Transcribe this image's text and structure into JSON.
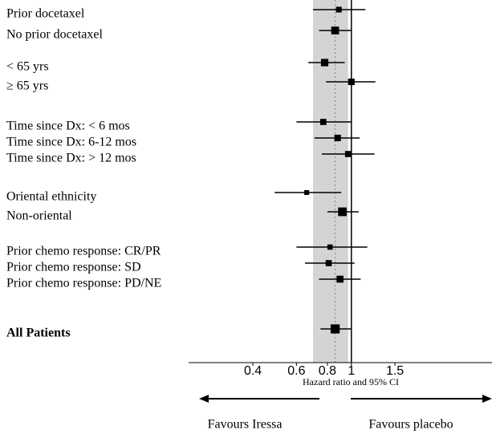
{
  "chart_data": {
    "type": "forest",
    "categories": [
      "Prior docetaxel",
      "No prior docetaxel",
      "< 65 yrs",
      "≥ 65 yrs",
      "Time since Dx: < 6 mos",
      "Time since Dx: 6-12 mos",
      "Time since Dx: > 12 mos",
      "Oriental ethnicity",
      "Non-oriental",
      "Prior chemo response: CR/PR",
      "Prior chemo response: SD",
      "Prior chemo response: PD/NE",
      "All Patients"
    ],
    "values": [
      0.89,
      0.86,
      0.78,
      1.0,
      0.77,
      0.88,
      0.97,
      0.66,
      0.92,
      0.82,
      0.81,
      0.9,
      0.86
    ],
    "lower": [
      0.7,
      0.74,
      0.67,
      0.79,
      0.6,
      0.71,
      0.76,
      0.49,
      0.8,
      0.6,
      0.65,
      0.74,
      0.75
    ],
    "upper": [
      1.14,
      1.0,
      0.94,
      1.25,
      1.0,
      1.08,
      1.24,
      0.91,
      1.07,
      1.16,
      1.03,
      1.09,
      1.0
    ],
    "weights": [
      1.2,
      2.2,
      2.0,
      1.6,
      1.4,
      1.6,
      1.4,
      0.8,
      2.6,
      1.0,
      1.4,
      1.8,
      2.8
    ],
    "band": [
      0.7,
      0.97
    ],
    "xlim": [
      0.22,
      3.7
    ],
    "xticks": [
      0.4,
      0.6,
      0.8,
      1,
      1.5
    ],
    "log_x": true,
    "xlabel": "Hazard ratio and 95% CI",
    "left_annotation": "Favours Iressa",
    "right_annotation": "Favours placebo",
    "color": "#000000",
    "band_color": "#d4d4d4"
  }
}
